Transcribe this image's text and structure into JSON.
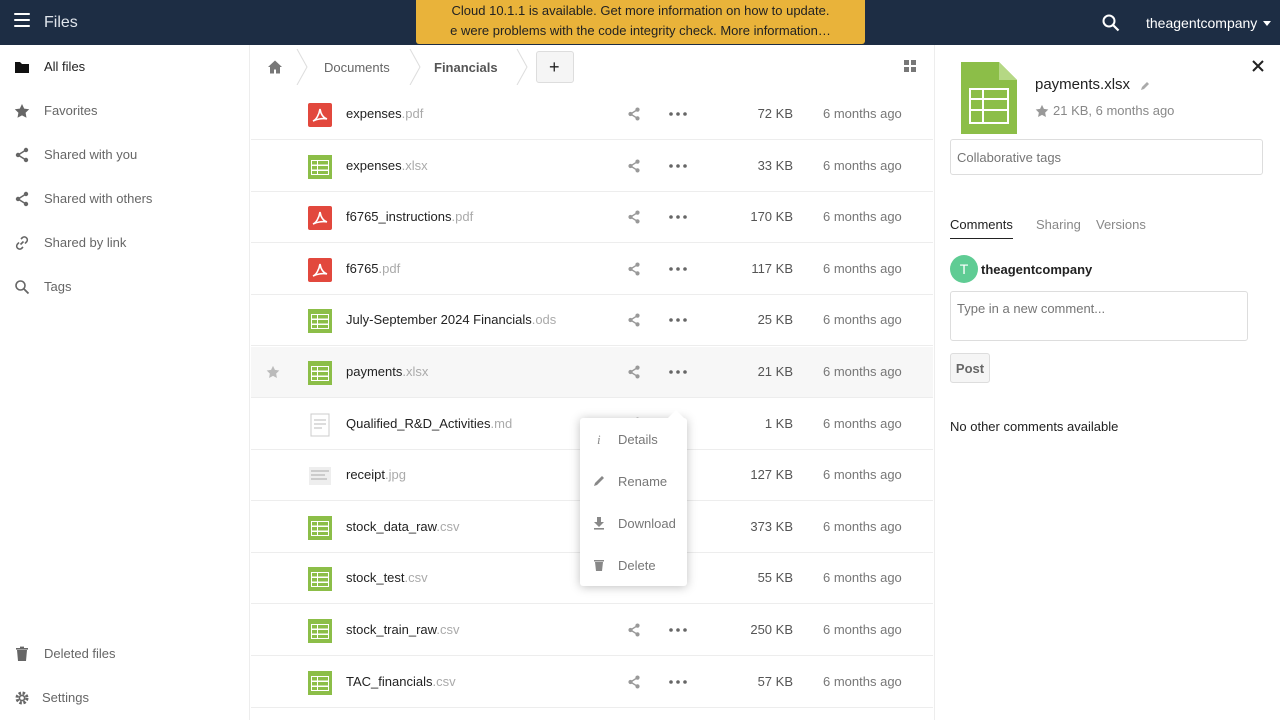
{
  "header": {
    "app_title": "Files",
    "user_name": "theagentcompany",
    "icons": {
      "menu": "hamburger-icon",
      "search": "search-icon"
    }
  },
  "banner": {
    "line1": "Cloud 10.1.1 is available. Get more information on how to update.",
    "line2": "e were problems with the code integrity check. More information…"
  },
  "sidebar": {
    "items": [
      {
        "label": "All files",
        "icon": "folder-icon"
      },
      {
        "label": "Favorites",
        "icon": "star-icon"
      },
      {
        "label": "Shared with you",
        "icon": "share-icon"
      },
      {
        "label": "Shared with others",
        "icon": "share-icon"
      },
      {
        "label": "Shared by link",
        "icon": "link-icon"
      },
      {
        "label": "Tags",
        "icon": "tag-search-icon"
      }
    ],
    "bottom": [
      {
        "label": "Deleted files",
        "icon": "trash-icon"
      },
      {
        "label": "Settings",
        "icon": "gear-icon"
      }
    ]
  },
  "breadcrumb": {
    "items": [
      "Documents",
      "Financials"
    ],
    "new_label": "+"
  },
  "files": [
    {
      "base": "expenses",
      "ext": ".pdf",
      "size": "72 KB",
      "modified": "6 months ago",
      "type": "pdf"
    },
    {
      "base": "expenses",
      "ext": ".xlsx",
      "size": "33 KB",
      "modified": "6 months ago",
      "type": "sheet"
    },
    {
      "base": "f6765_instructions",
      "ext": ".pdf",
      "size": "170 KB",
      "modified": "6 months ago",
      "type": "pdf"
    },
    {
      "base": "f6765",
      "ext": ".pdf",
      "size": "117 KB",
      "modified": "6 months ago",
      "type": "pdf"
    },
    {
      "base": "July-September 2024 Financials",
      "ext": ".ods",
      "size": "25 KB",
      "modified": "6 months ago",
      "type": "sheet"
    },
    {
      "base": "payments",
      "ext": ".xlsx",
      "size": "21 KB",
      "modified": "6 months ago",
      "type": "sheet"
    },
    {
      "base": "Qualified_R&D_Activities",
      "ext": ".md",
      "size": "1 KB",
      "modified": "6 months ago",
      "type": "text"
    },
    {
      "base": "receipt",
      "ext": ".jpg",
      "size": "127 KB",
      "modified": "6 months ago",
      "type": "image"
    },
    {
      "base": "stock_data_raw",
      "ext": ".csv",
      "size": "373 KB",
      "modified": "6 months ago",
      "type": "sheet"
    },
    {
      "base": "stock_test",
      "ext": ".csv",
      "size": "55 KB",
      "modified": "6 months ago",
      "type": "sheet"
    },
    {
      "base": "stock_train_raw",
      "ext": ".csv",
      "size": "250 KB",
      "modified": "6 months ago",
      "type": "sheet"
    },
    {
      "base": "TAC_financials",
      "ext": ".csv",
      "size": "57 KB",
      "modified": "6 months ago",
      "type": "sheet"
    }
  ],
  "context_menu": {
    "items": [
      "Details",
      "Rename",
      "Download",
      "Delete"
    ]
  },
  "details": {
    "file_name": "payments.xlsx",
    "meta": "21 KB, 6 months ago",
    "tags_placeholder": "Collaborative tags",
    "tabs": [
      "Comments",
      "Sharing",
      "Versions"
    ],
    "comment_user": "theagentcompany",
    "avatar_letter": "T",
    "comment_placeholder": "Type in a new comment...",
    "post_label": "Post",
    "no_comments": "No other comments available"
  },
  "colors": {
    "header_bg": "#1d2d44",
    "banner_bg": "#e9b33a",
    "sheet_icon": "#8cbe48",
    "pdf_icon": "#e2483d",
    "avatar": "#5fcc94"
  }
}
